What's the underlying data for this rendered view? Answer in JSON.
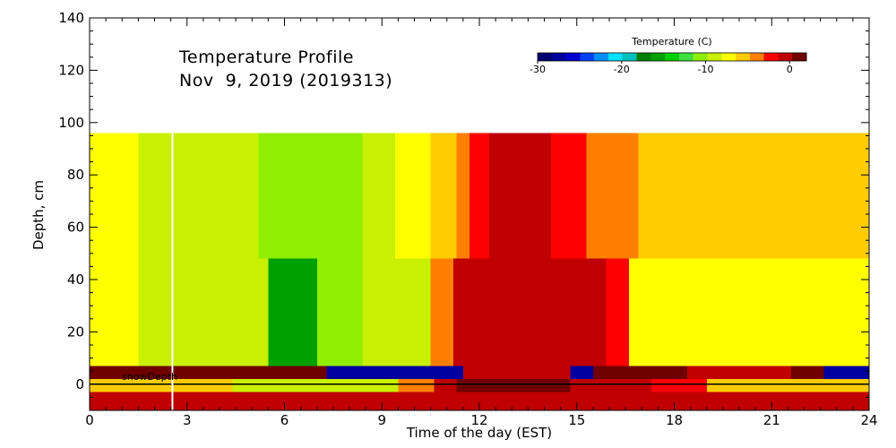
{
  "chart_data": {
    "type": "heatmap",
    "title": "Temperature Profile",
    "subtitle": "Nov  9, 2019 (2019313)",
    "xlabel": "Time of the day (EST)",
    "ylabel": "Depth, cm",
    "xlim": [
      0,
      24
    ],
    "ylim": [
      -10,
      140
    ],
    "x_ticks": [
      "0",
      "3",
      "6",
      "9",
      "12",
      "15",
      "18",
      "21",
      "24"
    ],
    "y_ticks": [
      "0",
      "20",
      "40",
      "60",
      "80",
      "100",
      "120",
      "140"
    ],
    "grid": false,
    "legend": {
      "title": "Temperature (C)",
      "placement": "top-right",
      "range": [
        -30,
        2
      ],
      "tick_labels": [
        "-30",
        "-20",
        "-10",
        "0"
      ],
      "colors": [
        "#000070",
        "#0000a0",
        "#0000d0",
        "#0040ff",
        "#0090ff",
        "#00e0ff",
        "#00c0c0",
        "#008000",
        "#00a000",
        "#00d000",
        "#40e040",
        "#90ee00",
        "#c8f000",
        "#ffff00",
        "#ffcc00",
        "#ff8000",
        "#ff0000",
        "#c00000",
        "#700000"
      ]
    },
    "annotations": {
      "snow_depth_label": "snowDepth",
      "snow_depth_cm": 0,
      "marker_time_h": 2.55
    },
    "series": [
      {
        "depth_top_cm": 96,
        "depth_bottom_cm": 48,
        "segments": [
          {
            "x0": 0,
            "x1": 1.5,
            "temp": -8
          },
          {
            "x0": 1.5,
            "x1": 5.2,
            "temp": -9
          },
          {
            "x0": 5.2,
            "x1": 8.4,
            "temp": -11
          },
          {
            "x0": 8.4,
            "x1": 9.4,
            "temp": -9
          },
          {
            "x0": 9.4,
            "x1": 10.5,
            "temp": -8
          },
          {
            "x0": 10.5,
            "x1": 11.3,
            "temp": -6
          },
          {
            "x0": 11.3,
            "x1": 11.7,
            "temp": -4
          },
          {
            "x0": 11.7,
            "x1": 12.3,
            "temp": -2
          },
          {
            "x0": 12.3,
            "x1": 14.2,
            "temp": 0
          },
          {
            "x0": 14.2,
            "x1": 15.3,
            "temp": -2
          },
          {
            "x0": 15.3,
            "x1": 16.9,
            "temp": -4
          },
          {
            "x0": 16.9,
            "x1": 24,
            "temp": -6
          }
        ]
      },
      {
        "depth_top_cm": 48,
        "depth_bottom_cm": 7,
        "segments": [
          {
            "x0": 0,
            "x1": 1.5,
            "temp": -8
          },
          {
            "x0": 1.5,
            "x1": 5.5,
            "temp": -9
          },
          {
            "x0": 5.5,
            "x1": 7.0,
            "temp": -16
          },
          {
            "x0": 7.0,
            "x1": 8.4,
            "temp": -11
          },
          {
            "x0": 8.4,
            "x1": 10.5,
            "temp": -9
          },
          {
            "x0": 10.5,
            "x1": 11.2,
            "temp": -4
          },
          {
            "x0": 11.2,
            "x1": 12.3,
            "temp": -1
          },
          {
            "x0": 12.3,
            "x1": 14.5,
            "temp": 0
          },
          {
            "x0": 14.5,
            "x1": 15.9,
            "temp": -1
          },
          {
            "x0": 15.9,
            "x1": 16.6,
            "temp": -3
          },
          {
            "x0": 16.6,
            "x1": 24,
            "temp": -7
          }
        ]
      },
      {
        "depth_top_cm": 7,
        "depth_bottom_cm": 2,
        "segments": [
          {
            "x0": 0,
            "x1": 7.3,
            "temp": 1
          },
          {
            "x0": 7.3,
            "x1": 11.5,
            "temp": -27
          },
          {
            "x0": 11.5,
            "x1": 14.8,
            "temp": -1
          },
          {
            "x0": 14.8,
            "x1": 15.5,
            "temp": -28
          },
          {
            "x0": 15.5,
            "x1": 18.4,
            "temp": 1
          },
          {
            "x0": 18.4,
            "x1": 21.6,
            "temp": -1
          },
          {
            "x0": 21.6,
            "x1": 22.6,
            "temp": 1
          },
          {
            "x0": 22.6,
            "x1": 24,
            "temp": -27
          }
        ]
      },
      {
        "depth_top_cm": 2,
        "depth_bottom_cm": -3,
        "segments": [
          {
            "x0": 0,
            "x1": 4.4,
            "temp": -6
          },
          {
            "x0": 4.4,
            "x1": 9.5,
            "temp": -9
          },
          {
            "x0": 9.5,
            "x1": 10.6,
            "temp": -4
          },
          {
            "x0": 10.6,
            "x1": 11.3,
            "temp": -1
          },
          {
            "x0": 11.3,
            "x1": 14.8,
            "temp": 1
          },
          {
            "x0": 14.8,
            "x1": 17.3,
            "temp": -1
          },
          {
            "x0": 17.3,
            "x1": 19.0,
            "temp": -3
          },
          {
            "x0": 19.0,
            "x1": 24,
            "temp": -6
          }
        ]
      },
      {
        "depth_top_cm": -3,
        "depth_bottom_cm": -10,
        "segments": [
          {
            "x0": 0,
            "x1": 24,
            "temp": -1
          }
        ]
      }
    ]
  }
}
